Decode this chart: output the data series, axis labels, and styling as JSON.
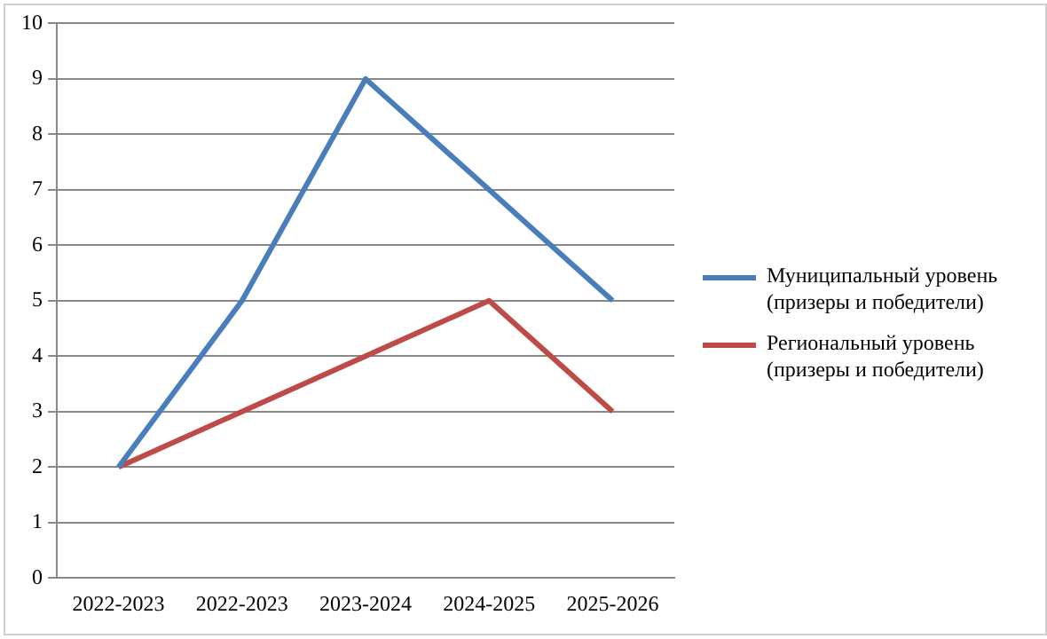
{
  "chart_data": {
    "type": "line",
    "categories": [
      "2022-2023",
      "2022-2023",
      "2023-2024",
      "2024-2025",
      "2025-2026"
    ],
    "series": [
      {
        "name": "Муниципальный уровень (призеры и победители)",
        "color": "#4a7ebb",
        "values": [
          2,
          5,
          9,
          7,
          5
        ]
      },
      {
        "name": "Региональный уровень (призеры и победители)",
        "color": "#be4b48",
        "values": [
          2,
          3,
          4,
          5,
          3
        ]
      }
    ],
    "ylim": [
      0,
      10
    ],
    "yticks": [
      0,
      1,
      2,
      3,
      4,
      5,
      6,
      7,
      8,
      9,
      10
    ],
    "grid": "y",
    "legend": "right",
    "marker": "none",
    "line_style": "solid"
  }
}
